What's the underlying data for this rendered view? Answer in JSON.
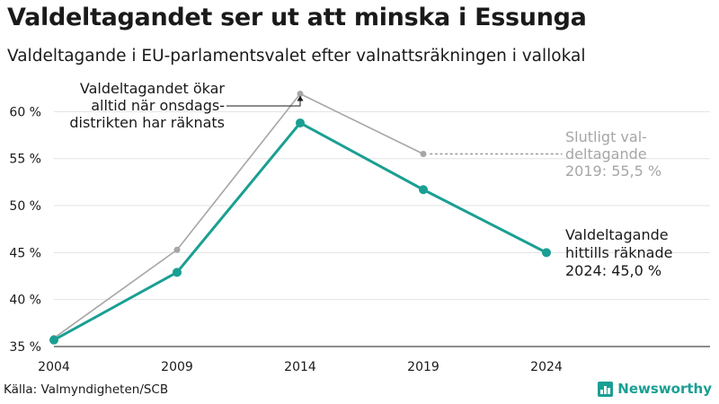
{
  "title": "Valdeltagandet ser ut att minska i Essunga",
  "subtitle": "Valdeltagande i EU-parlamentsvalet efter valnattsräkningen i vallokal",
  "source": "Källa: Valmyndigheten/SCB",
  "brand": "Newsworthy",
  "colors": {
    "prelim": "#1a9f93",
    "final": "#a6a6a6",
    "grid": "#e3e3e3"
  },
  "chart_data": {
    "type": "line",
    "x": [
      "2004",
      "2009",
      "2014",
      "2019",
      "2024"
    ],
    "ylim": [
      35,
      63
    ],
    "yticks": [
      35,
      40,
      45,
      50,
      55,
      60
    ],
    "ytick_labels": [
      "35 %",
      "40 %",
      "45 %",
      "50 %",
      "55 %",
      "60 %"
    ],
    "series": [
      {
        "key": "final",
        "values": [
          35.9,
          45.3,
          61.9,
          55.5,
          null
        ]
      },
      {
        "key": "prelim",
        "values": [
          35.7,
          42.9,
          58.8,
          51.7,
          45.0
        ]
      }
    ],
    "annotations": {
      "wednesday": [
        "Valdeltagandet ökar",
        "alltid när onsdags-",
        "distrikten har räknats"
      ],
      "final_2019": [
        "Slutligt val-",
        "deltagande",
        "2019: 55,5 %"
      ],
      "prelim_2024": [
        "Valdeltagande",
        "hittills räknade",
        "2024: 45,0 %"
      ]
    }
  }
}
